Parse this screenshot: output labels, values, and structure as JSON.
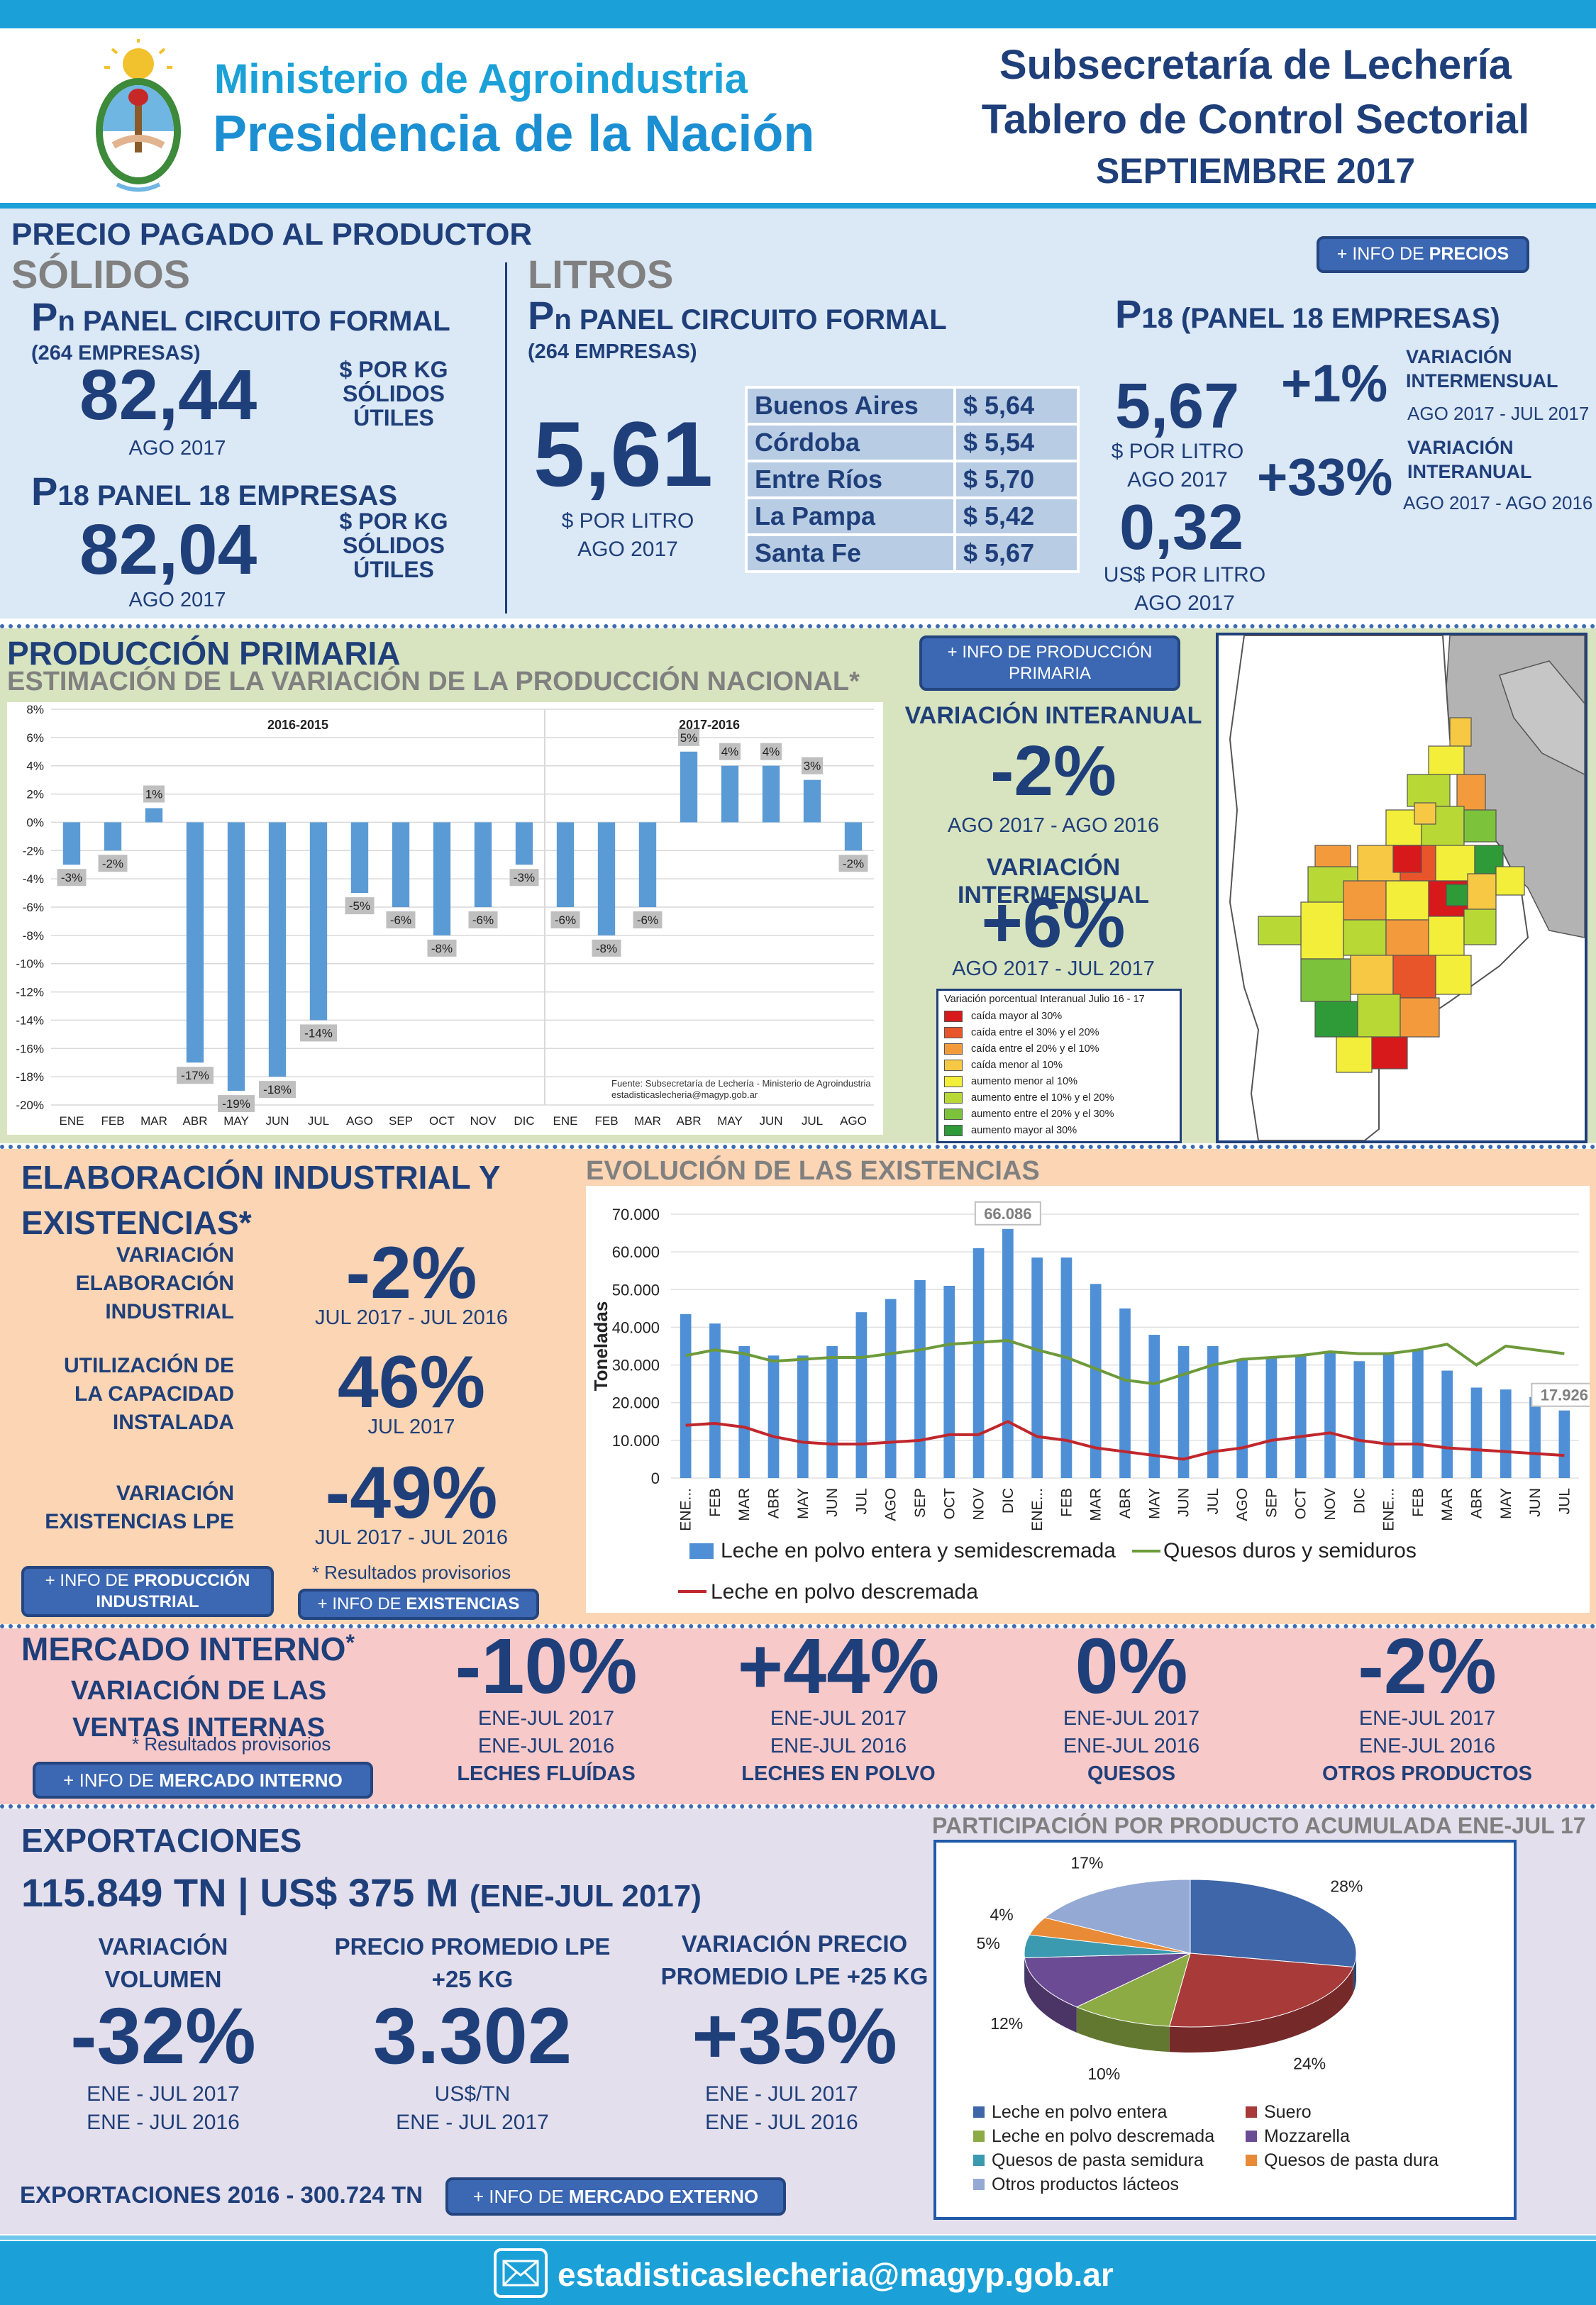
{
  "header": {
    "ministry_line1": "Ministerio de Agroindustria",
    "ministry_line2": "Presidencia de la Nación",
    "title1": "Subsecretaría de Lechería",
    "title2": "Tablero de Control Sectorial",
    "title3": "SEPTIEMBRE 2017"
  },
  "prices": {
    "section_title": "PRECIO PAGADO AL PRODUCTOR",
    "info_btn_pre": "+ INFO DE ",
    "info_btn_bold": "PRECIOS",
    "solidos": {
      "title": "SÓLIDOS",
      "pn_prefix": "P",
      "pn_sub": "n",
      "pn_title": " PANEL CIRCUITO FORMAL",
      "pn_companies": "(264 EMPRESAS)",
      "pn_value": "82,44",
      "pn_unit1": "$ POR KG",
      "pn_unit2": "SÓLIDOS",
      "pn_unit3": "ÚTILES",
      "pn_date": "AGO 2017",
      "p18_prefix": "P",
      "p18_sub": "18",
      "p18_title": " PANEL 18 EMPRESAS",
      "p18_value": "82,04",
      "p18_unit1": "$ POR KG",
      "p18_unit2": "SÓLIDOS",
      "p18_unit3": "ÚTILES",
      "p18_date": "AGO 2017"
    },
    "litros": {
      "title": "LITROS",
      "pn_prefix": "P",
      "pn_sub": "n",
      "pn_title": " PANEL CIRCUITO FORMAL",
      "pn_companies": "(264 EMPRESAS)",
      "pn_value": "5,61",
      "pn_unit": "$ POR LITRO",
      "pn_date": "AGO 2017",
      "provinces": [
        {
          "name": "Buenos Aires",
          "price": "$ 5,64"
        },
        {
          "name": "Córdoba",
          "price": "$ 5,54"
        },
        {
          "name": "Entre Ríos",
          "price": "$ 5,70"
        },
        {
          "name": "La Pampa",
          "price": "$ 5,42"
        },
        {
          "name": "Santa Fe",
          "price": "$ 5,67"
        }
      ]
    },
    "p18": {
      "prefix": "P",
      "sub": "18",
      "title": " (PANEL 18 EMPRESAS)",
      "value": "5,67",
      "unit": "$ POR LITRO",
      "date": "AGO 2017",
      "usd_value": "0,32",
      "usd_unit": "US$ POR LITRO",
      "usd_date": "AGO 2017",
      "var_m": "+1%",
      "var_m_label1": "VARIACIÓN",
      "var_m_label2": "INTERMENSUAL",
      "var_m_period": "AGO 2017 - JUL 2017",
      "var_a": "+33%",
      "var_a_label1": "VARIACIÓN",
      "var_a_label2": "INTERANUAL",
      "var_a_period": "AGO 2017 - AGO 2016"
    }
  },
  "production": {
    "title": "PRODUCCIÓN PRIMARIA",
    "subtitle": "ESTIMACIÓN DE LA VARIACIÓN DE LA PRODUCCIÓN NACIONAL*",
    "info_btn": "+ INFO DE PRODUCCIÓN PRIMARIA",
    "var_a_label": "VARIACIÓN INTERANUAL",
    "var_a": "-2%",
    "var_a_period": "AGO 2017 - AGO 2016",
    "var_m_label": "VARIACIÓN INTERMENSUAL",
    "var_m": "+6%",
    "var_m_period": "AGO 2017 - JUL 2017",
    "legend_title": "Variación porcentual Interanual Julio 16 - 17",
    "legend": [
      {
        "label": "caída mayor al 30%",
        "color": "#d7191c"
      },
      {
        "label": "caída entre el 30% y el 20%",
        "color": "#e8552a"
      },
      {
        "label": "caída entre el 20% y el 10%",
        "color": "#f39b3c"
      },
      {
        "label": "caída menor al 10%",
        "color": "#f7c843"
      },
      {
        "label": "aumento menor al 10%",
        "color": "#f2ee3a"
      },
      {
        "label": "aumento entre el 10% y el 20%",
        "color": "#b8d935"
      },
      {
        "label": "aumento entre el 20% y el 30%",
        "color": "#7cc33b"
      },
      {
        "label": "aumento mayor al 30%",
        "color": "#2e9a38"
      }
    ]
  },
  "industrial": {
    "title1": "ELABORACIÓN INDUSTRIAL Y",
    "title2": "EXISTENCIAS*",
    "elab_label1": "VARIACIÓN",
    "elab_label2": "ELABORACIÓN",
    "elab_label3": "INDUSTRIAL",
    "elab_value": "-2%",
    "elab_period": "JUL 2017 - JUL 2016",
    "cap_label1": "UTILIZACIÓN DE",
    "cap_label2": "LA CAPACIDAD",
    "cap_label3": "INSTALADA",
    "cap_value": "46%",
    "cap_period": "JUL 2017",
    "exist_label1": "VARIACIÓN",
    "exist_label2": "EXISTENCIAS LPE",
    "exist_value": "-49%",
    "exist_period": "JUL 2017 - JUL 2016",
    "note": "* Resultados provisorios",
    "btn_ind_pre": "+ INFO DE ",
    "btn_ind_bold": "PRODUCCIÓN INDUSTRIAL",
    "btn_exist_pre": "+ INFO DE ",
    "btn_exist_bold": "EXISTENCIAS",
    "chart_title": "EVOLUCIÓN DE LAS EXISTENCIAS"
  },
  "market": {
    "title": "MERCADO INTERNO",
    "title_star": "*",
    "subtitle1": "VARIACIÓN DE LAS",
    "subtitle2": "VENTAS INTERNAS",
    "note": "* Resultados provisorios",
    "btn_pre": "+ INFO DE ",
    "btn_bold": "MERCADO INTERNO",
    "items": [
      {
        "value": "-10%",
        "p1": "ENE-JUL 2017",
        "p2": "ENE-JUL 2016",
        "label": "LECHES FLUÍDAS"
      },
      {
        "value": "+44%",
        "p1": "ENE-JUL 2017",
        "p2": "ENE-JUL 2016",
        "label": "LECHES EN POLVO"
      },
      {
        "value": "0%",
        "p1": "ENE-JUL 2017",
        "p2": "ENE-JUL 2016",
        "label": "QUESOS"
      },
      {
        "value": "-2%",
        "p1": "ENE-JUL 2017",
        "p2": "ENE-JUL 2016",
        "label": "OTROS PRODUCTOS"
      }
    ]
  },
  "exports": {
    "title": "EXPORTACIONES",
    "summary_main": "115.849 TN | US$ 375 M ",
    "summary_period": "(ENE-JUL 2017)",
    "vol_label1": "VARIACIÓN",
    "vol_label2": "VOLUMEN",
    "vol_value": "-32%",
    "vol_p1": "ENE - JUL 2017",
    "vol_p2": "ENE - JUL 2016",
    "price_label1": "PRECIO PROMEDIO LPE",
    "price_label2": "+25 KG",
    "price_value": "3.302",
    "price_unit": "US$/TN",
    "price_period": "ENE - JUL 2017",
    "pvar_label1": "VARIACIÓN PRECIO",
    "pvar_label2": "PROMEDIO LPE +25 KG",
    "pvar_value": "+35%",
    "pvar_p1": "ENE - JUL 2017",
    "pvar_p2": "ENE - JUL 2016",
    "total": "EXPORTACIONES 2016 - 300.724 TN",
    "btn_pre": "+ INFO DE ",
    "btn_bold": "MERCADO EXTERNO",
    "pie_title": "PARTICIPACIÓN POR PRODUCTO ACUMULADA ENE-JUL 17"
  },
  "footer": {
    "email": "estadisticaslecheria@magyp.gob.ar"
  },
  "chart_data": [
    {
      "type": "bar",
      "title": "Variación de la producción nacional",
      "groups": [
        "2016-2015",
        "2017-2016"
      ],
      "categories": [
        "ENE",
        "FEB",
        "MAR",
        "ABR",
        "MAY",
        "JUN",
        "JUL",
        "AGO",
        "SEP",
        "OCT",
        "NOV",
        "DIC",
        "ENE",
        "FEB",
        "MAR",
        "ABR",
        "MAY",
        "JUN",
        "JUL",
        "AGO"
      ],
      "values": [
        -3,
        -2,
        1,
        -17,
        -19,
        -18,
        -14,
        -5,
        -6,
        -8,
        -6,
        -3,
        -6,
        -8,
        -6,
        5,
        4,
        4,
        3,
        -2
      ],
      "labels": [
        "-3%",
        "-2%",
        "1%",
        "-17%",
        "-19%",
        "-18%",
        "-14%",
        "-5%",
        "-6%",
        "-8%",
        "-6%",
        "-3%",
        "-6%",
        "-8%",
        "-6%",
        "5%",
        "4%",
        "4%",
        "3%",
        "-2%"
      ],
      "ylim": [
        -20,
        8
      ],
      "yticks": [
        "8%",
        "6%",
        "4%",
        "2%",
        "0%",
        "-2%",
        "-4%",
        "-6%",
        "-8%",
        "-10%",
        "-12%",
        "-14%",
        "-16%",
        "-18%",
        "-20%"
      ],
      "source1": "Fuente: Subsecretaría de Lechería - Ministerio de Agroindustria",
      "source2": "estadisticaslecheria@magyp.gob.ar"
    },
    {
      "type": "bar",
      "title": "Evolución de las existencias",
      "ylabel": "Toneladas",
      "ylim": [
        0,
        70000
      ],
      "yticks": [
        "70.000",
        "60.000",
        "50.000",
        "40.000",
        "30.000",
        "20.000",
        "10.000",
        "0"
      ],
      "categories": [
        "ENE...",
        "FEB",
        "MAR",
        "ABR",
        "MAY",
        "JUN",
        "JUL",
        "AGO",
        "SEP",
        "OCT",
        "NOV",
        "DIC",
        "ENE...",
        "FEB",
        "MAR",
        "ABR",
        "MAY",
        "JUN",
        "JUL",
        "AGO",
        "SEP",
        "OCT",
        "NOV",
        "DIC",
        "ENE...",
        "FEB",
        "MAR",
        "ABR",
        "MAY",
        "JUN",
        "JUL"
      ],
      "series": [
        {
          "name": "Leche en polvo entera y semidescremada",
          "color": "#4f8fd6",
          "values": [
            43500,
            41000,
            35000,
            32500,
            32500,
            35000,
            44000,
            47500,
            52500,
            51000,
            61000,
            66086,
            58500,
            58500,
            51500,
            45000,
            38000,
            35000,
            35000,
            31500,
            32000,
            32500,
            33500,
            31000,
            33000,
            34000,
            28500,
            24000,
            23500,
            21500,
            17926
          ]
        },
        {
          "name": "Quesos duros y semiduros",
          "color": "#6d9a3a",
          "values": [
            32500,
            34000,
            33000,
            31000,
            31500,
            32000,
            32000,
            33000,
            34000,
            35500,
            36000,
            36500,
            34000,
            32000,
            29000,
            26000,
            25000,
            27500,
            30000,
            31500,
            32000,
            32500,
            33500,
            33000,
            33000,
            34000,
            35500,
            30000,
            35000,
            34000,
            33000
          ]
        },
        {
          "name": "Leche en polvo descremada",
          "color": "#c0272d",
          "values": [
            14000,
            14500,
            13500,
            11000,
            9500,
            9000,
            9000,
            9500,
            10000,
            11500,
            11500,
            15000,
            11000,
            10000,
            8000,
            7000,
            6000,
            5000,
            7000,
            8000,
            10000,
            11000,
            12000,
            10000,
            9000,
            9000,
            8000,
            7500,
            7000,
            6500,
            6000
          ]
        }
      ],
      "data_labels": [
        "66.086",
        "17.926"
      ]
    },
    {
      "type": "pie",
      "title": "PARTICIPACIÓN POR PRODUCTO ACUMULADA ENE-JUL 17",
      "slices": [
        {
          "name": "Leche en polvo entera",
          "value": 28,
          "label": "28%",
          "color": "#3e66a8"
        },
        {
          "name": "Suero",
          "value": 24,
          "label": "24%",
          "color": "#a93a3a"
        },
        {
          "name": "Leche en polvo descremada",
          "value": 10,
          "label": "10%",
          "color": "#8cab45"
        },
        {
          "name": "Mozzarella",
          "value": 12,
          "label": "12%",
          "color": "#6b4b93"
        },
        {
          "name": "Quesos de pasta semidura",
          "value": 5,
          "label": "5%",
          "color": "#3b9ab0"
        },
        {
          "name": "Quesos de pasta dura",
          "value": 4,
          "label": "4%",
          "color": "#e98a36"
        },
        {
          "name": "Otros productos lácteos",
          "value": 17,
          "label": "17%",
          "color": "#94a9d4"
        }
      ]
    }
  ]
}
